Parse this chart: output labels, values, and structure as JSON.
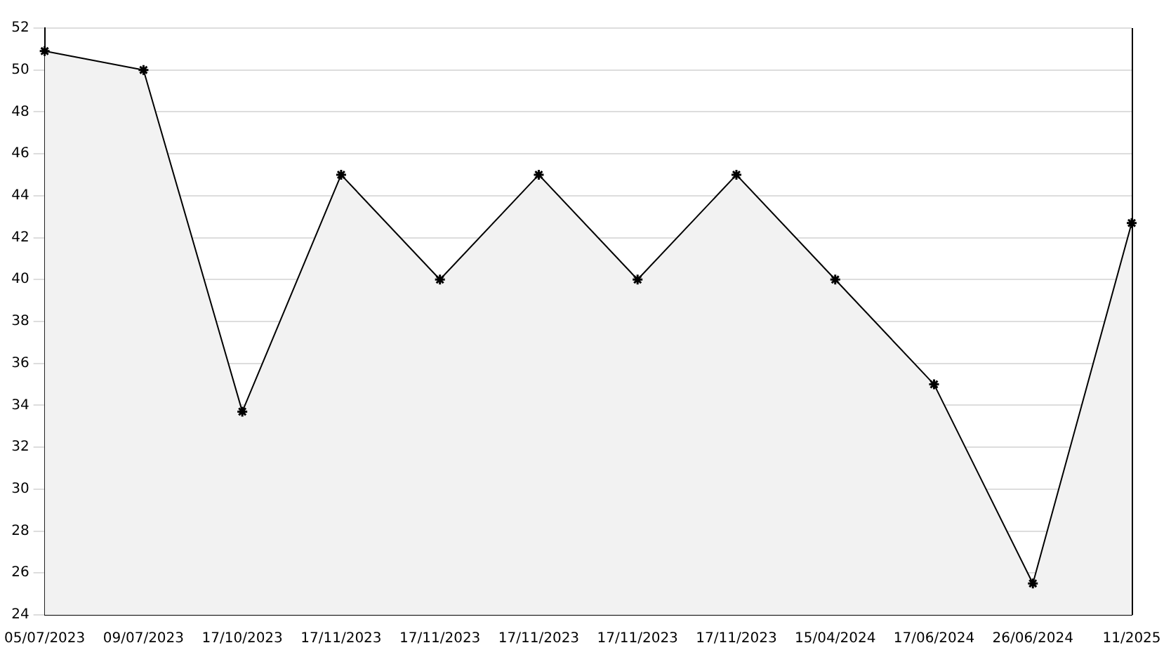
{
  "chart_data": {
    "type": "area",
    "categories": [
      "05/07/2023",
      "09/07/2023",
      "17/10/2023",
      "17/11/2023",
      "17/11/2023",
      "17/11/2023",
      "17/11/2023",
      "17/11/2023",
      "15/04/2024",
      "17/06/2024",
      "26/06/2024",
      "11/2025"
    ],
    "series": [
      {
        "color": "#000000",
        "values": [
          50.9,
          50,
          33.7,
          45,
          40,
          45,
          40,
          45,
          40,
          35,
          25.5,
          42.7
        ]
      }
    ],
    "ylim": [
      24,
      52
    ],
    "yticks": [
      24,
      26,
      28,
      30,
      32,
      34,
      36,
      38,
      40,
      42,
      44,
      46,
      48,
      50,
      52
    ],
    "grid": "y",
    "marker": "cross",
    "line_style": "solid",
    "legend": false
  }
}
